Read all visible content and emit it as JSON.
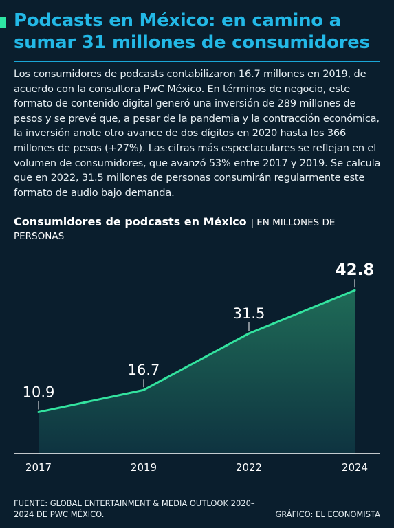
{
  "header": {
    "title": "Podcasts en México: en camino a sumar 31 millones de consumidores"
  },
  "intro": {
    "text": "Los consumidores de podcasts contabilizaron 16.7 millones en 2019, de acuerdo con la consultora PwC México. En términos de negocio, este formato de contenido digital generó una inversión de 289 millones de pesos y se prevé que, a pesar de la pandemia y la contracción económica, la inversión anote otro avance de dos dígitos en 2020 hasta los 366 millones de pesos (+27%). Las cifras más espectaculares se reflejan en el volumen de consumidores, que avanzó 53% entre 2017 y 2019. Se calcula que en 2022, 31.5 millones de personas consumirán regularmente este formato de audio bajo demanda."
  },
  "chart_heading": {
    "title": "Consumidores de podcasts en México",
    "separator": "|",
    "unit": "EN MILLONES DE PERSONAS"
  },
  "chart_data": {
    "type": "area",
    "title": "Consumidores de podcasts en México",
    "subtitle": "EN MILLONES DE PERSONAS",
    "x": [
      "2017",
      "2019",
      "2022",
      "2024"
    ],
    "values": [
      10.9,
      16.7,
      31.5,
      42.8
    ],
    "data_labels": [
      "10.9",
      "16.7",
      "31.5",
      "42.8"
    ],
    "highlight_last": true,
    "ylim": [
      0,
      45
    ],
    "grid": false,
    "colors": {
      "line": "#33e39f",
      "fill_top": "#1f6b57",
      "fill_bottom": "#0e3340",
      "axis": "#ffffff"
    }
  },
  "footer": {
    "source": "FUENTE: GLOBAL ENTERTAINMENT & MEDIA OUTLOOK 2020–2024 DE PWC MÉXICO.",
    "credit": "GRÁFICO: EL ECONOMISTA"
  }
}
